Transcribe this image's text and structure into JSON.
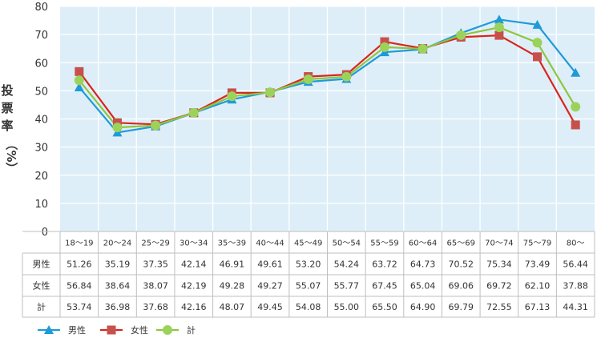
{
  "chart_data": {
    "type": "line",
    "ylabel": "投票率（%）",
    "ylim": [
      0,
      80
    ],
    "yticks": [
      0,
      10,
      20,
      30,
      40,
      50,
      60,
      70,
      80
    ],
    "grid": true,
    "legend_position": "bottom-left",
    "categories": [
      "18～19",
      "20～24",
      "25～29",
      "30～34",
      "35～39",
      "40～44",
      "45～49",
      "50～54",
      "55～59",
      "60～64",
      "65～69",
      "70～74",
      "75～79",
      "80～"
    ],
    "series": [
      {
        "name": "男性",
        "color": "#1f9ad8",
        "marker": "triangle",
        "values": [
          51.26,
          35.19,
          37.35,
          42.14,
          46.91,
          49.61,
          53.2,
          54.24,
          63.72,
          64.73,
          70.52,
          75.34,
          73.49,
          56.44
        ],
        "labels": [
          "51.26",
          "35.19",
          "37.35",
          "42.14",
          "46.91",
          "49.61",
          "53.20",
          "54.24",
          "63.72",
          "64.73",
          "70.52",
          "75.34",
          "73.49",
          "56.44"
        ]
      },
      {
        "name": "女性",
        "color": "#d9261c",
        "marker_color": "#c8504a",
        "marker": "square",
        "values": [
          56.84,
          38.64,
          38.07,
          42.19,
          49.28,
          49.27,
          55.07,
          55.77,
          67.45,
          65.04,
          69.06,
          69.72,
          62.1,
          37.88
        ],
        "labels": [
          "56.84",
          "38.64",
          "38.07",
          "42.19",
          "49.28",
          "49.27",
          "55.07",
          "55.77",
          "67.45",
          "65.04",
          "69.06",
          "69.72",
          "62.10",
          "37.88"
        ]
      },
      {
        "name": "計",
        "color": "#8dc63f",
        "marker_color": "#9bd35a",
        "marker": "circle",
        "values": [
          53.74,
          36.98,
          37.68,
          42.16,
          48.07,
          49.45,
          54.08,
          55.0,
          65.5,
          64.9,
          69.79,
          72.55,
          67.13,
          44.31
        ],
        "labels": [
          "53.74",
          "36.98",
          "37.68",
          "42.16",
          "48.07",
          "49.45",
          "54.08",
          "55.00",
          "65.50",
          "64.90",
          "69.79",
          "72.55",
          "67.13",
          "44.31"
        ]
      }
    ]
  },
  "colors": {
    "plot_background": "#ddeef8",
    "gridline": "#ffffff",
    "table_border": "#bfbfbf",
    "axis_text": "#333333"
  }
}
